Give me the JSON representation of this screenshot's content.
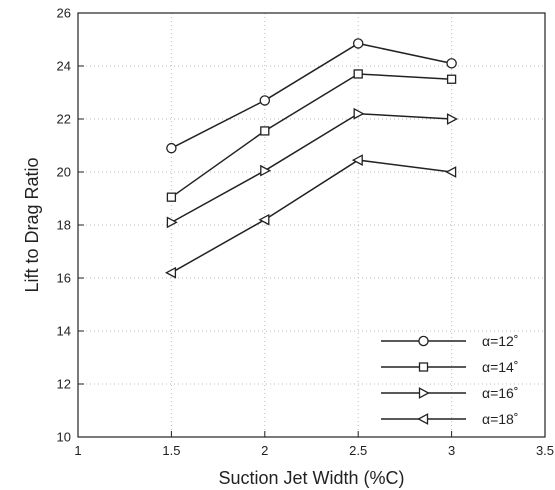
{
  "chart_data": {
    "type": "line",
    "title": "",
    "xlabel": "Suction Jet Width (%C)",
    "ylabel": "Lift to Drag Ratio",
    "xlim": [
      1,
      3.5
    ],
    "ylim": [
      10,
      26
    ],
    "xticks": [
      "1",
      "1.5",
      "2",
      "2.5",
      "3",
      "3.5"
    ],
    "yticks": [
      "10",
      "12",
      "14",
      "16",
      "18",
      "20",
      "22",
      "24",
      "26"
    ],
    "grid": true,
    "legend_position": "bottom-right",
    "x": [
      1.5,
      2,
      2.5,
      3
    ],
    "series": [
      {
        "name": "α=12˚",
        "marker": "circle",
        "values": [
          20.9,
          22.7,
          24.85,
          24.1
        ]
      },
      {
        "name": "α=14˚",
        "marker": "square",
        "values": [
          19.05,
          21.55,
          23.7,
          23.5
        ]
      },
      {
        "name": "α=16˚",
        "marker": "triangle-right",
        "values": [
          18.1,
          20.05,
          22.2,
          22.0
        ]
      },
      {
        "name": "α=18˚",
        "marker": "triangle-left",
        "values": [
          16.2,
          18.2,
          20.45,
          20.0
        ]
      }
    ],
    "line_color": "#222222"
  }
}
